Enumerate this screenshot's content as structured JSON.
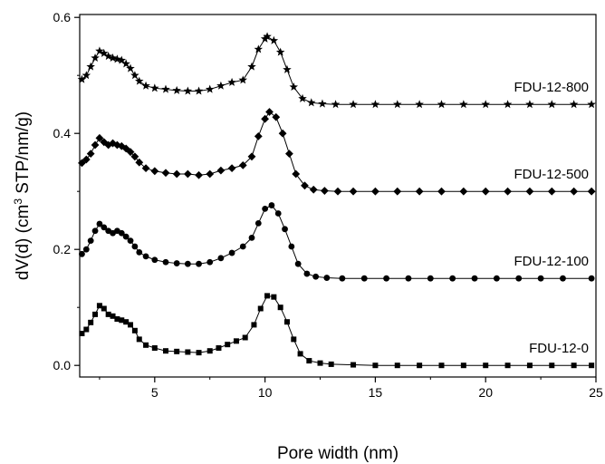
{
  "chart_data": {
    "type": "line",
    "xlabel": "Pore width (nm)",
    "ylabel": {
      "pre": "dV(d) (cm",
      "sup": "3",
      "post": " STP/nm/g)"
    },
    "xlim": [
      1.6,
      25
    ],
    "ylim": [
      -0.02,
      0.605
    ],
    "xticks": [
      5,
      10,
      15,
      20,
      25
    ],
    "yticks": [
      0.0,
      0.2,
      0.4,
      0.6
    ],
    "xtick_labels": [
      "5",
      "10",
      "15",
      "20",
      "25"
    ],
    "ytick_labels": [
      "0.0",
      "0.2",
      "0.4",
      "0.6"
    ],
    "grid": false,
    "legend": "none (series labeled inline at right)",
    "series": [
      {
        "name": "FDU-12-0",
        "marker": "square",
        "points": [
          [
            1.7,
            0.055
          ],
          [
            1.9,
            0.062
          ],
          [
            2.1,
            0.074
          ],
          [
            2.3,
            0.088
          ],
          [
            2.5,
            0.103
          ],
          [
            2.7,
            0.098
          ],
          [
            2.9,
            0.088
          ],
          [
            3.1,
            0.085
          ],
          [
            3.3,
            0.08
          ],
          [
            3.5,
            0.078
          ],
          [
            3.7,
            0.075
          ],
          [
            3.9,
            0.07
          ],
          [
            4.1,
            0.06
          ],
          [
            4.3,
            0.045
          ],
          [
            4.6,
            0.035
          ],
          [
            5.0,
            0.03
          ],
          [
            5.5,
            0.025
          ],
          [
            6.0,
            0.024
          ],
          [
            6.5,
            0.023
          ],
          [
            7.0,
            0.022
          ],
          [
            7.5,
            0.025
          ],
          [
            7.9,
            0.03
          ],
          [
            8.3,
            0.036
          ],
          [
            8.7,
            0.042
          ],
          [
            9.1,
            0.048
          ],
          [
            9.5,
            0.07
          ],
          [
            9.8,
            0.098
          ],
          [
            10.1,
            0.12
          ],
          [
            10.4,
            0.118
          ],
          [
            10.7,
            0.1
          ],
          [
            11.0,
            0.075
          ],
          [
            11.3,
            0.045
          ],
          [
            11.6,
            0.02
          ],
          [
            12.0,
            0.008
          ],
          [
            12.5,
            0.004
          ],
          [
            13.0,
            0.002
          ],
          [
            14.0,
            0.001
          ],
          [
            15.0,
            0.0
          ],
          [
            16.0,
            0.0
          ],
          [
            17.0,
            0.0
          ],
          [
            18.0,
            0.0
          ],
          [
            19.0,
            0.0
          ],
          [
            20.0,
            0.0
          ],
          [
            21.0,
            0.0
          ],
          [
            22.0,
            0.0
          ],
          [
            23.0,
            0.0
          ],
          [
            24.0,
            0.0
          ],
          [
            24.8,
            0.0
          ]
        ]
      },
      {
        "name": "FDU-12-100",
        "marker": "circle",
        "points": [
          [
            1.7,
            0.192
          ],
          [
            1.9,
            0.2
          ],
          [
            2.1,
            0.215
          ],
          [
            2.3,
            0.232
          ],
          [
            2.5,
            0.244
          ],
          [
            2.7,
            0.238
          ],
          [
            2.9,
            0.232
          ],
          [
            3.1,
            0.228
          ],
          [
            3.3,
            0.232
          ],
          [
            3.5,
            0.228
          ],
          [
            3.7,
            0.222
          ],
          [
            3.9,
            0.215
          ],
          [
            4.1,
            0.205
          ],
          [
            4.3,
            0.195
          ],
          [
            4.6,
            0.188
          ],
          [
            5.0,
            0.182
          ],
          [
            5.5,
            0.178
          ],
          [
            6.0,
            0.176
          ],
          [
            6.5,
            0.175
          ],
          [
            7.0,
            0.175
          ],
          [
            7.5,
            0.178
          ],
          [
            8.0,
            0.185
          ],
          [
            8.5,
            0.194
          ],
          [
            9.0,
            0.205
          ],
          [
            9.4,
            0.22
          ],
          [
            9.7,
            0.245
          ],
          [
            10.0,
            0.27
          ],
          [
            10.3,
            0.276
          ],
          [
            10.6,
            0.262
          ],
          [
            10.9,
            0.235
          ],
          [
            11.2,
            0.205
          ],
          [
            11.5,
            0.175
          ],
          [
            11.9,
            0.158
          ],
          [
            12.3,
            0.153
          ],
          [
            12.8,
            0.151
          ],
          [
            13.5,
            0.15
          ],
          [
            14.5,
            0.15
          ],
          [
            15.5,
            0.15
          ],
          [
            16.5,
            0.15
          ],
          [
            17.5,
            0.15
          ],
          [
            18.5,
            0.15
          ],
          [
            19.5,
            0.15
          ],
          [
            20.5,
            0.15
          ],
          [
            21.5,
            0.15
          ],
          [
            22.5,
            0.15
          ],
          [
            23.5,
            0.15
          ],
          [
            24.8,
            0.15
          ]
        ]
      },
      {
        "name": "FDU-12-500",
        "marker": "diamond",
        "points": [
          [
            1.7,
            0.349
          ],
          [
            1.9,
            0.355
          ],
          [
            2.1,
            0.365
          ],
          [
            2.3,
            0.38
          ],
          [
            2.5,
            0.392
          ],
          [
            2.7,
            0.385
          ],
          [
            2.9,
            0.38
          ],
          [
            3.1,
            0.383
          ],
          [
            3.3,
            0.38
          ],
          [
            3.5,
            0.378
          ],
          [
            3.7,
            0.374
          ],
          [
            3.9,
            0.368
          ],
          [
            4.1,
            0.36
          ],
          [
            4.3,
            0.35
          ],
          [
            4.6,
            0.34
          ],
          [
            5.0,
            0.335
          ],
          [
            5.5,
            0.332
          ],
          [
            6.0,
            0.33
          ],
          [
            6.5,
            0.33
          ],
          [
            7.0,
            0.328
          ],
          [
            7.5,
            0.33
          ],
          [
            8.0,
            0.336
          ],
          [
            8.5,
            0.34
          ],
          [
            9.0,
            0.345
          ],
          [
            9.4,
            0.36
          ],
          [
            9.7,
            0.395
          ],
          [
            10.0,
            0.425
          ],
          [
            10.2,
            0.437
          ],
          [
            10.5,
            0.428
          ],
          [
            10.8,
            0.4
          ],
          [
            11.1,
            0.365
          ],
          [
            11.4,
            0.33
          ],
          [
            11.8,
            0.31
          ],
          [
            12.2,
            0.303
          ],
          [
            12.7,
            0.301
          ],
          [
            13.3,
            0.3
          ],
          [
            14.0,
            0.3
          ],
          [
            15.0,
            0.3
          ],
          [
            16.0,
            0.3
          ],
          [
            17.0,
            0.3
          ],
          [
            18.0,
            0.3
          ],
          [
            19.0,
            0.3
          ],
          [
            20.0,
            0.3
          ],
          [
            21.0,
            0.3
          ],
          [
            22.0,
            0.3
          ],
          [
            23.0,
            0.3
          ],
          [
            24.0,
            0.3
          ],
          [
            24.8,
            0.3
          ]
        ]
      },
      {
        "name": "FDU-12-800",
        "marker": "star",
        "points": [
          [
            1.7,
            0.493
          ],
          [
            1.9,
            0.5
          ],
          [
            2.1,
            0.515
          ],
          [
            2.3,
            0.53
          ],
          [
            2.5,
            0.542
          ],
          [
            2.7,
            0.538
          ],
          [
            2.9,
            0.533
          ],
          [
            3.1,
            0.53
          ],
          [
            3.3,
            0.528
          ],
          [
            3.5,
            0.526
          ],
          [
            3.7,
            0.52
          ],
          [
            3.9,
            0.512
          ],
          [
            4.1,
            0.5
          ],
          [
            4.3,
            0.49
          ],
          [
            4.6,
            0.482
          ],
          [
            5.0,
            0.478
          ],
          [
            5.5,
            0.476
          ],
          [
            6.0,
            0.474
          ],
          [
            6.5,
            0.473
          ],
          [
            7.0,
            0.473
          ],
          [
            7.5,
            0.476
          ],
          [
            8.0,
            0.482
          ],
          [
            8.5,
            0.488
          ],
          [
            9.0,
            0.492
          ],
          [
            9.4,
            0.515
          ],
          [
            9.7,
            0.545
          ],
          [
            10.0,
            0.563
          ],
          [
            10.1,
            0.567
          ],
          [
            10.4,
            0.56
          ],
          [
            10.7,
            0.54
          ],
          [
            11.0,
            0.51
          ],
          [
            11.3,
            0.48
          ],
          [
            11.7,
            0.46
          ],
          [
            12.1,
            0.453
          ],
          [
            12.6,
            0.451
          ],
          [
            13.2,
            0.45
          ],
          [
            14.0,
            0.45
          ],
          [
            15.0,
            0.45
          ],
          [
            16.0,
            0.45
          ],
          [
            17.0,
            0.45
          ],
          [
            18.0,
            0.45
          ],
          [
            19.0,
            0.45
          ],
          [
            20.0,
            0.45
          ],
          [
            21.0,
            0.45
          ],
          [
            22.0,
            0.45
          ],
          [
            23.0,
            0.45
          ],
          [
            24.0,
            0.45
          ],
          [
            24.8,
            0.45
          ]
        ]
      }
    ]
  }
}
